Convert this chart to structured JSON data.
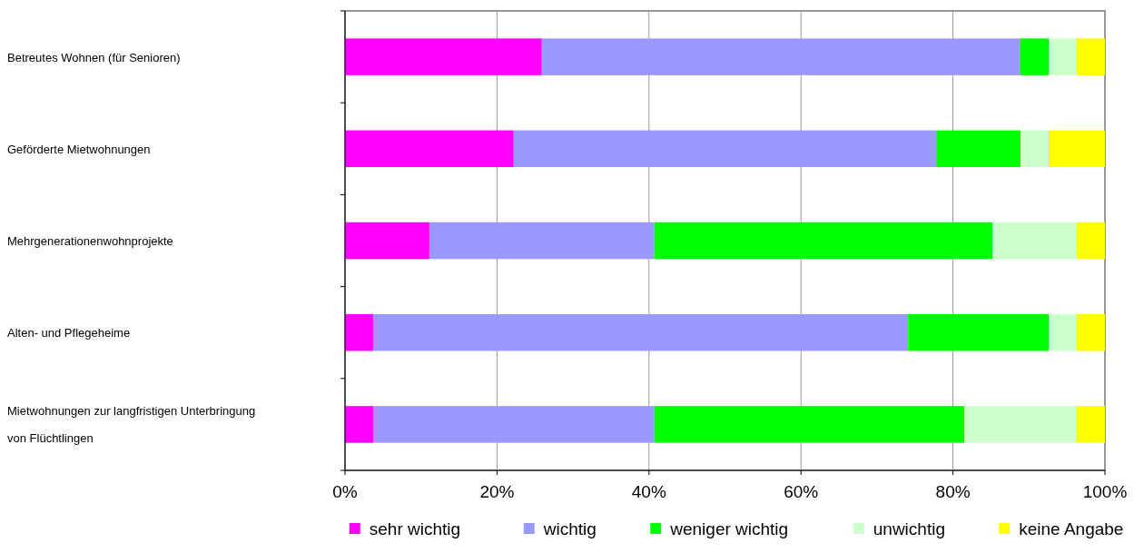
{
  "chart_data": {
    "type": "bar",
    "orientation": "horizontal",
    "stacked": true,
    "categories": [
      "Betreutes Wohnen (für Senioren)",
      "Geförderte Mietwohnungen",
      "Mehrgenerationenwohnprojekte",
      "Alten- und Pflegeheime",
      "Mietwohnungen zur langfristigen Unterbringung von Flüchtlingen"
    ],
    "series": [
      {
        "name": "sehr wichtig",
        "color": "#ff00ff",
        "values": [
          25.9,
          22.2,
          11.1,
          3.7,
          3.7
        ]
      },
      {
        "name": "wichtig",
        "color": "#9999ff",
        "values": [
          63.0,
          55.6,
          29.6,
          70.4,
          37.0
        ]
      },
      {
        "name": "weniger wichtig",
        "color": "#00ff00",
        "values": [
          3.7,
          11.1,
          44.5,
          18.5,
          40.8
        ]
      },
      {
        "name": "unwichtig",
        "color": "#ccffcc",
        "values": [
          3.7,
          3.7,
          11.1,
          3.7,
          14.8
        ]
      },
      {
        "name": "keine Angabe",
        "color": "#ffff00",
        "values": [
          3.7,
          7.4,
          3.7,
          3.7,
          3.7
        ]
      }
    ],
    "xlim": [
      0,
      100
    ],
    "xticks": [
      {
        "value": 0,
        "label": "0%"
      },
      {
        "value": 20,
        "label": "20%"
      },
      {
        "value": 40,
        "label": "40%"
      },
      {
        "value": 60,
        "label": "60%"
      },
      {
        "value": 80,
        "label": "80%"
      },
      {
        "value": 100,
        "label": "100%"
      }
    ],
    "grid": "x",
    "legend": "bottom"
  }
}
